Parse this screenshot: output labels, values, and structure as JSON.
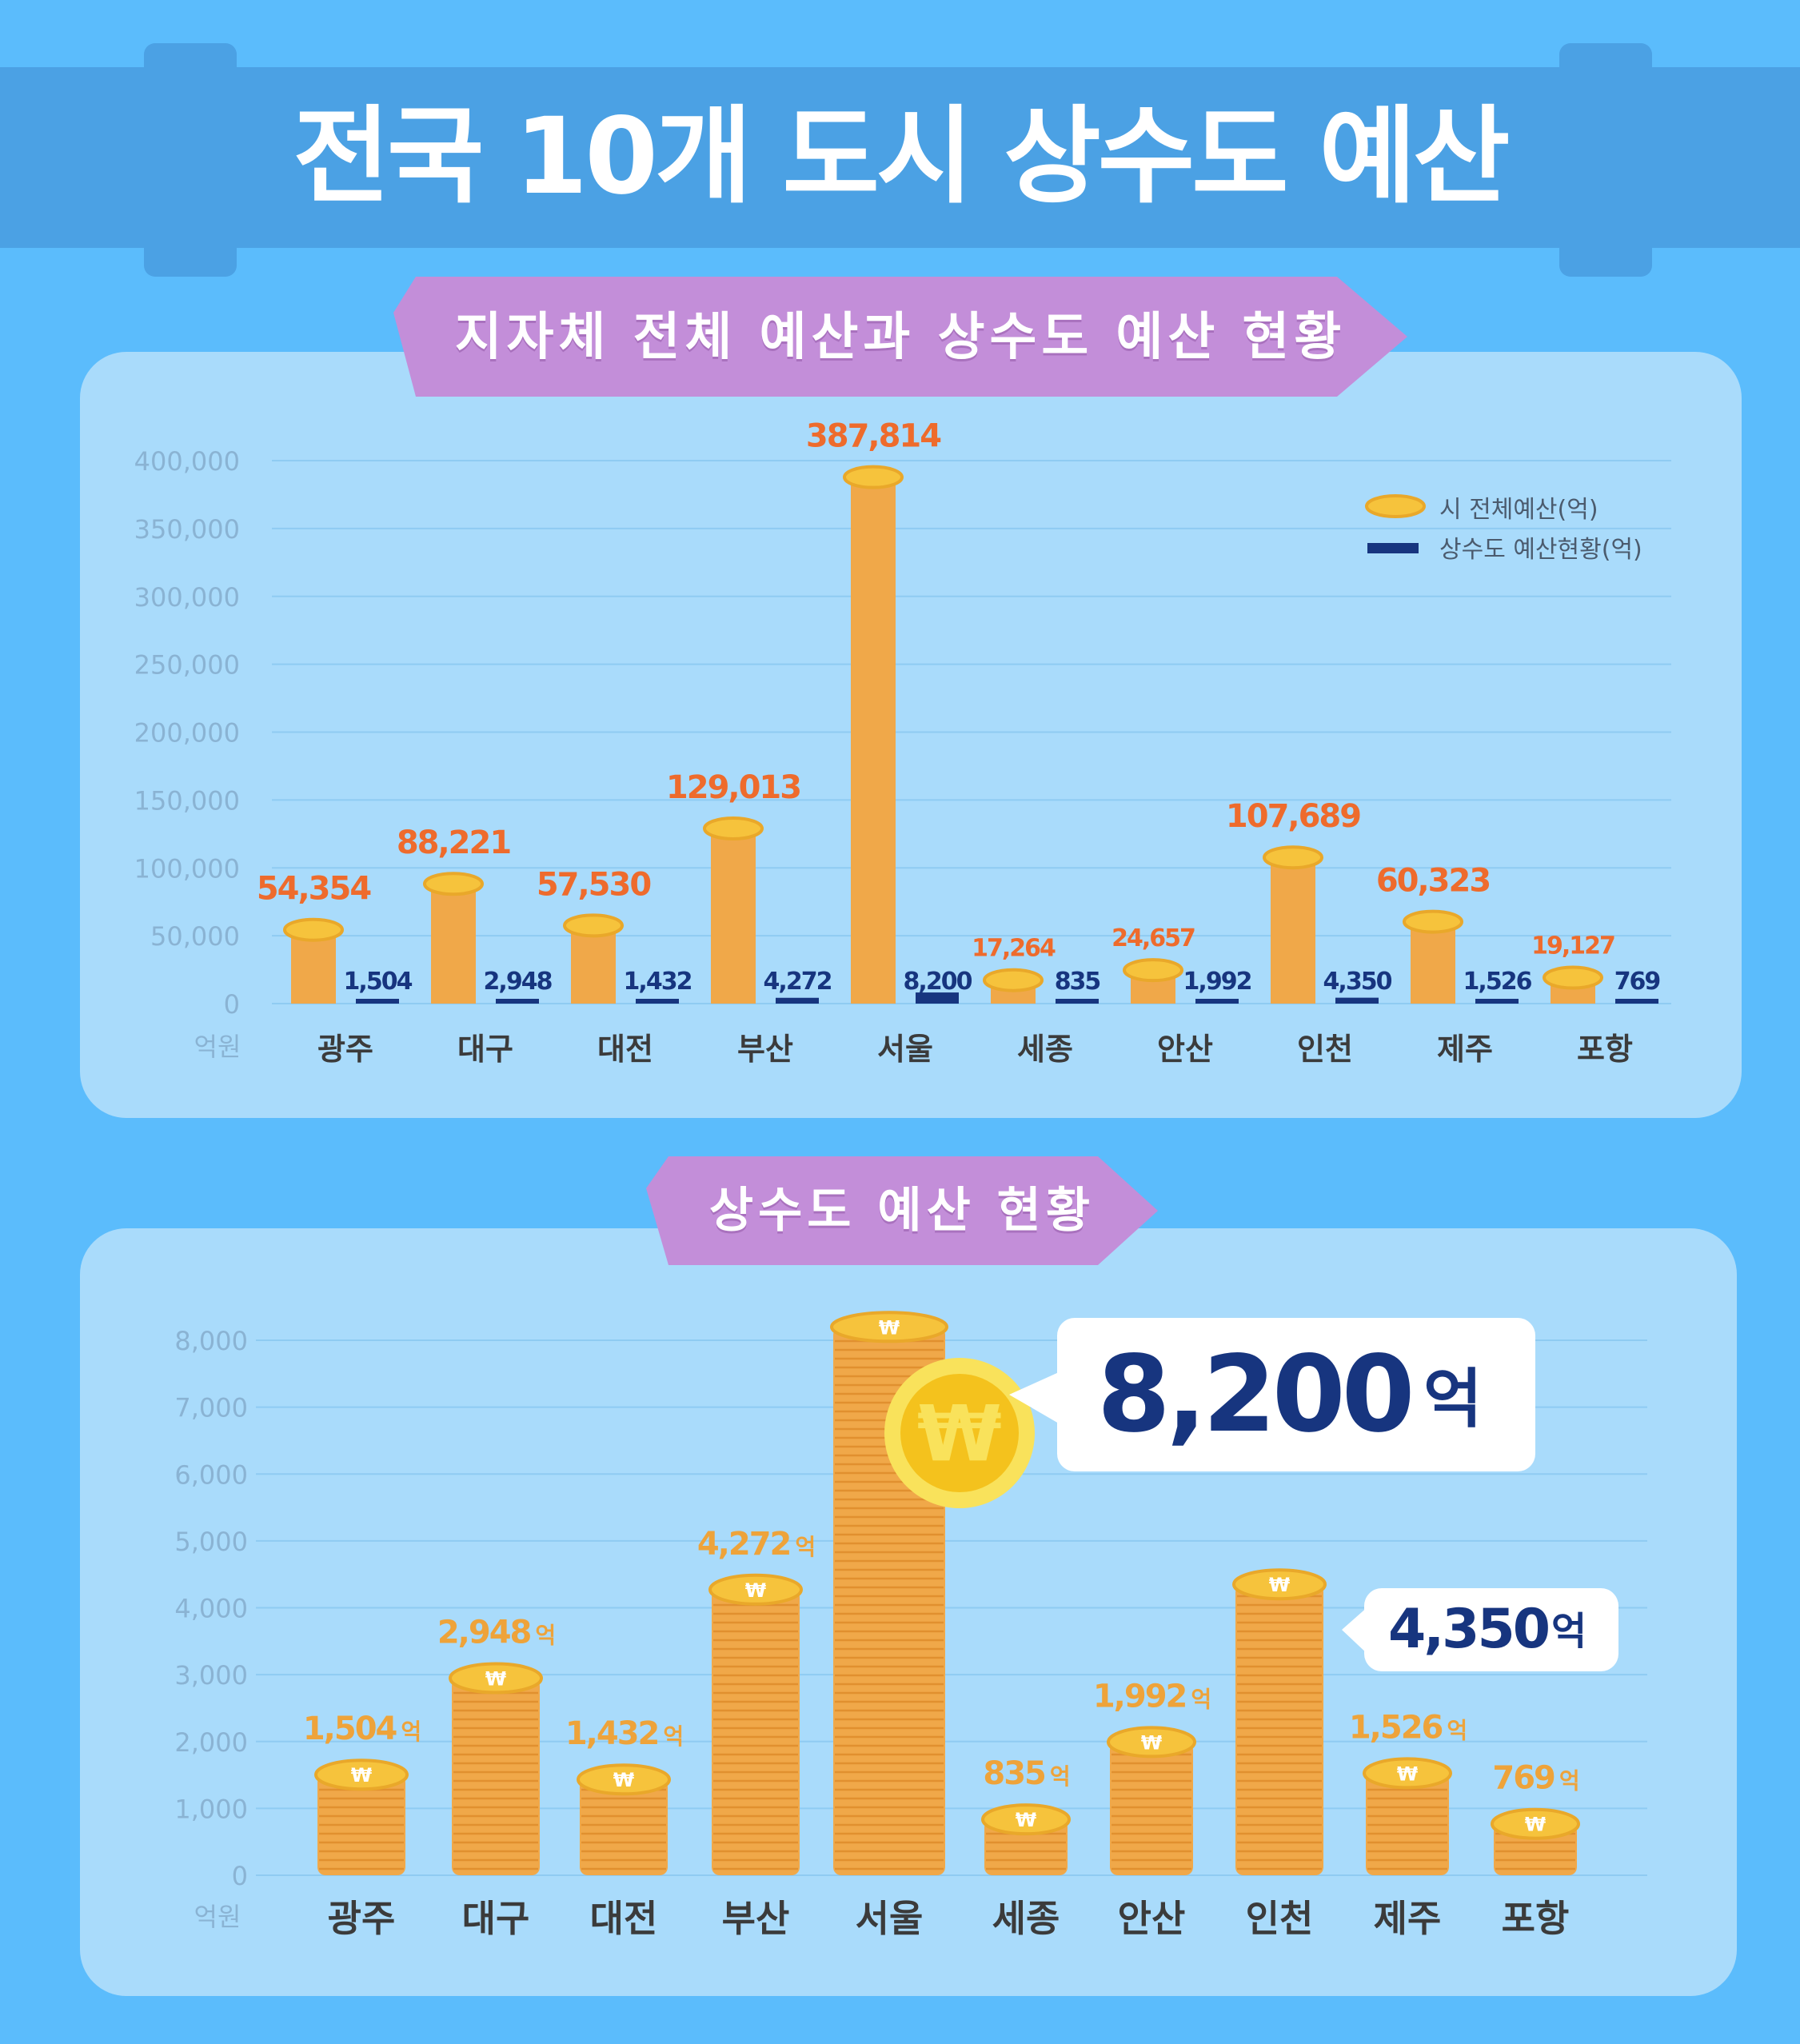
{
  "title": "전국 10개 도시 상수도 예산",
  "section1_title": "지자체 전체 예산과 상수도 예산 현황",
  "section2_title": "상수도 예산 현황",
  "unit_label": "억원",
  "colors": {
    "total": "#f0a849",
    "water": "#17357f",
    "coin": "#f6c33c",
    "total_label": "#ee6b2c",
    "water_label": "#17357f",
    "coin_label": "#eea33a"
  },
  "chart_data": [
    {
      "type": "bar",
      "categories": [
        "광주",
        "대구",
        "대전",
        "부산",
        "서울",
        "세종",
        "안산",
        "인천",
        "제주",
        "포항"
      ],
      "series": [
        {
          "name": "시 전체예산(억)",
          "values": [
            54354,
            88221,
            57530,
            129013,
            387814,
            17264,
            24657,
            107689,
            60323,
            19127
          ],
          "labels": [
            "54,354",
            "88,221",
            "57,530",
            "129,013",
            "387,814",
            "17,264",
            "24,657",
            "107,689",
            "60,323",
            "19,127"
          ]
        },
        {
          "name": "상수도 예산현황(억)",
          "values": [
            1504,
            2948,
            1432,
            4272,
            8200,
            835,
            1992,
            4350,
            1526,
            769
          ],
          "labels": [
            "1,504",
            "2,948",
            "1,432",
            "4,272",
            "8,200",
            "835",
            "1,992",
            "4,350",
            "1,526",
            "769"
          ]
        }
      ],
      "ylim": [
        0,
        400000
      ],
      "yticks": [
        "400,000",
        "350,000",
        "300,000",
        "250,000",
        "200,000",
        "150,000",
        "100,000",
        "50,000",
        "0"
      ],
      "ytick_values": [
        400000,
        350000,
        300000,
        250000,
        200000,
        150000,
        100000,
        50000,
        0
      ],
      "legend_position": "top-right",
      "grid": true
    },
    {
      "type": "bar",
      "categories": [
        "광주",
        "대구",
        "대전",
        "부산",
        "서울",
        "세종",
        "안산",
        "인천",
        "제주",
        "포항"
      ],
      "values": [
        1504,
        2948,
        1432,
        4272,
        8200,
        835,
        1992,
        4350,
        1526,
        769
      ],
      "labels": [
        "1,504",
        "2,948",
        "1,432",
        "4,272",
        "8,200",
        "835",
        "1,992",
        "4,350",
        "1,526",
        "769"
      ],
      "value_unit": "억",
      "ylim": [
        0,
        8000
      ],
      "yticks": [
        "8,000",
        "7,000",
        "6,000",
        "5,000",
        "4,000",
        "3,000",
        "2,000",
        "1,000",
        "0"
      ],
      "ytick_values": [
        8000,
        7000,
        6000,
        5000,
        4000,
        3000,
        2000,
        1000,
        0
      ],
      "grid": true,
      "callouts": [
        {
          "number": "8,200",
          "unit": "억"
        },
        {
          "number": "4,350",
          "unit": "억"
        }
      ]
    }
  ]
}
